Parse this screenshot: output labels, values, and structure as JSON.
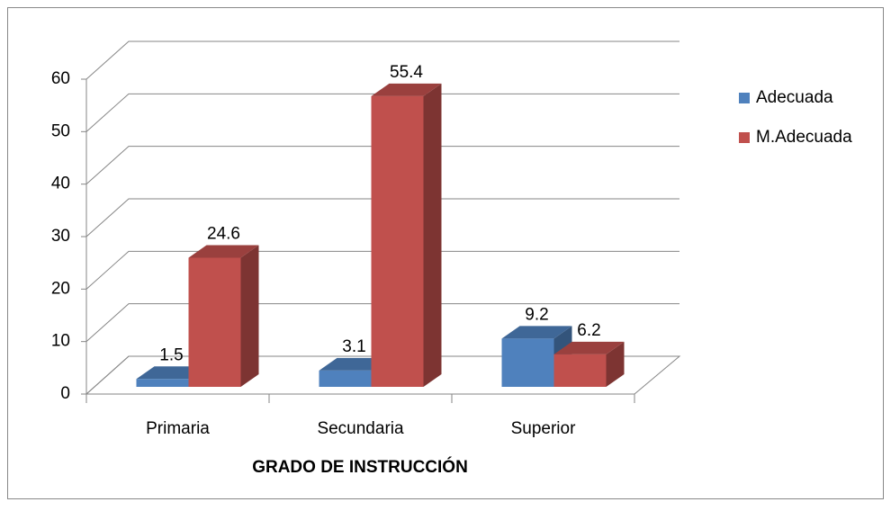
{
  "chart_data": {
    "type": "bar3d",
    "categories": [
      "Primaria",
      "Secundaria",
      "Superior"
    ],
    "series": [
      {
        "name": "Adecuada",
        "color": "#4f81bd",
        "values": [
          1.5,
          3.1,
          9.2
        ]
      },
      {
        "name": "M.Adecuada",
        "color": "#c0504d",
        "values": [
          24.6,
          55.4,
          6.2
        ]
      }
    ],
    "xlabel": "GRADO DE INSTRUCCIÓN",
    "ylim": [
      0,
      60
    ],
    "yticks": [
      0,
      10,
      20,
      30,
      40,
      50,
      60
    ],
    "grid": true,
    "legend": "right"
  }
}
